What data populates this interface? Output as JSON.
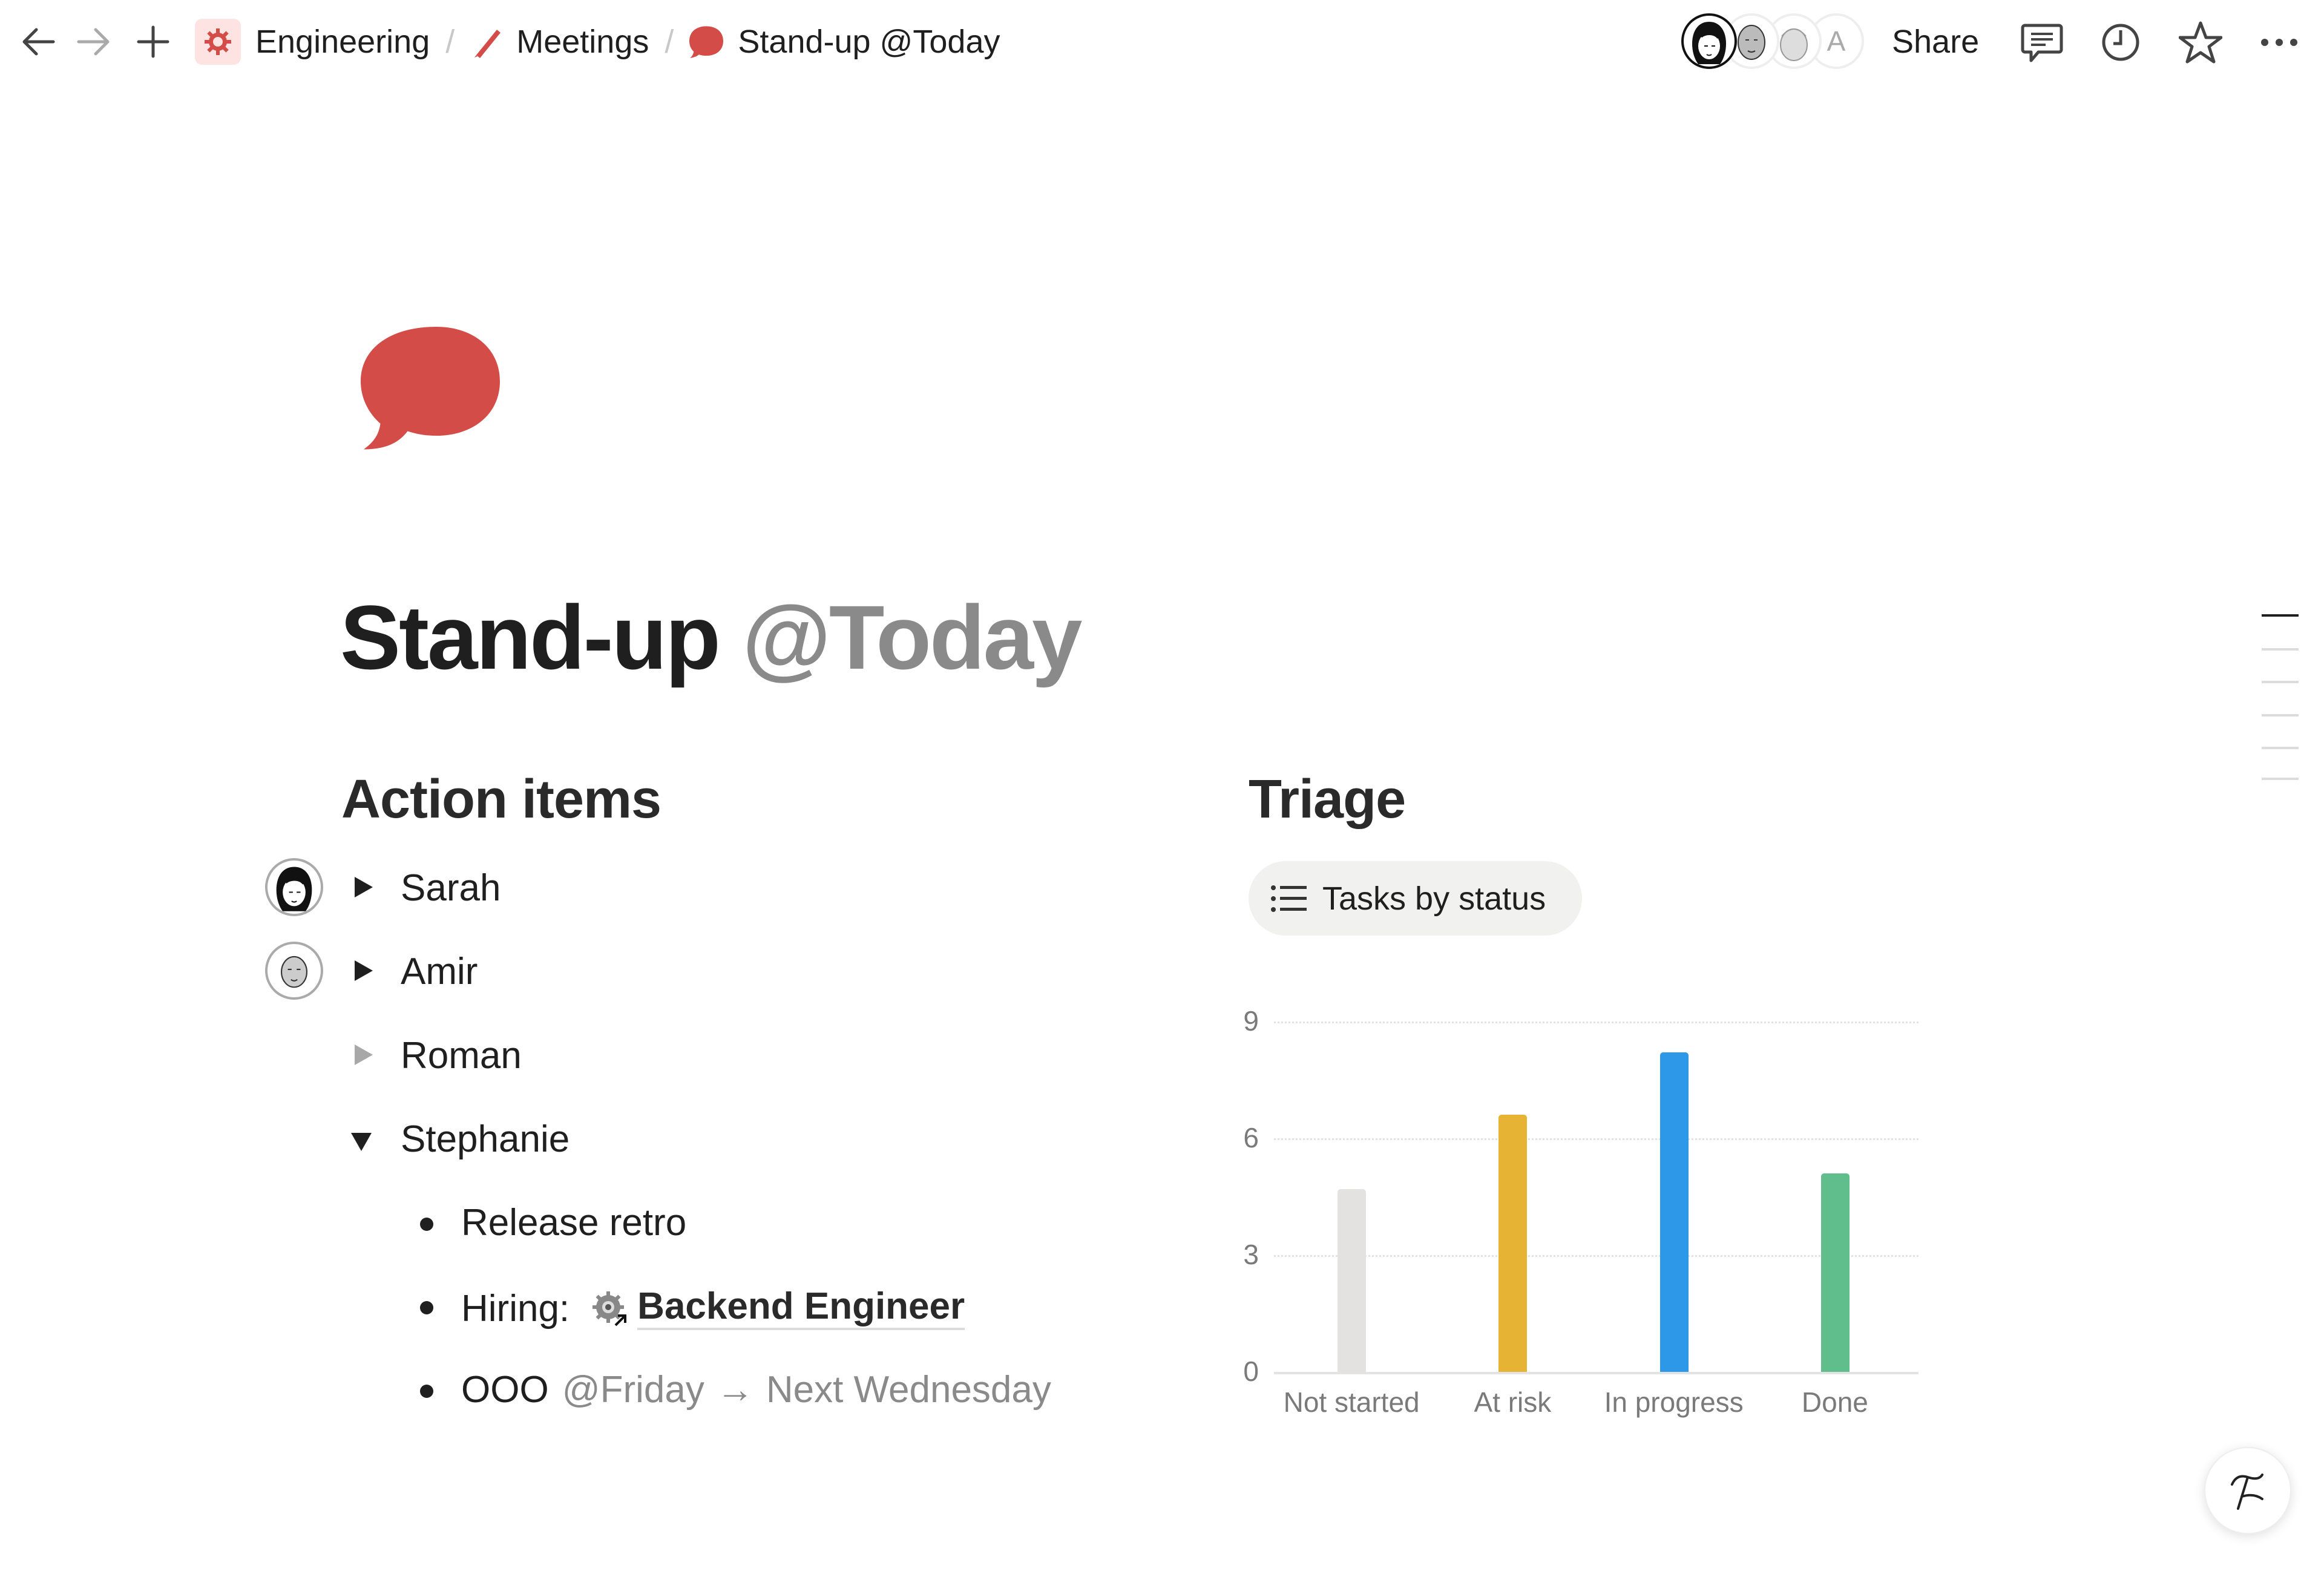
{
  "topbar": {
    "breadcrumb": [
      {
        "label": "Engineering",
        "icon": "gear-icon"
      },
      {
        "label": "Meetings",
        "icon": "pencil-icon"
      },
      {
        "label": "Stand-up @Today",
        "icon": "speech-bubble-icon"
      }
    ],
    "separator": "/",
    "avatars": [
      "Sarah",
      "Amir",
      "Roman",
      "A"
    ],
    "share_label": "Share"
  },
  "page": {
    "icon": "speech-bubble-icon",
    "title": "Stand-up",
    "title_mention": "@Today"
  },
  "action_items": {
    "heading": "Action items",
    "people": [
      {
        "name": "Sarah",
        "state": "collapsed",
        "has_avatar": true
      },
      {
        "name": "Amir",
        "state": "collapsed",
        "has_avatar": true
      },
      {
        "name": "Roman",
        "state": "collapsed-empty",
        "has_avatar": false
      },
      {
        "name": "Stephanie",
        "state": "expanded",
        "has_avatar": false
      }
    ],
    "stephanie_items": [
      {
        "text": "Release retro"
      },
      {
        "prefix": "Hiring:",
        "link": "Backend Engineer"
      },
      {
        "text": "OOO",
        "mention": "@Friday",
        "arrow": "→",
        "to": "Next Wednesday"
      }
    ]
  },
  "triage": {
    "heading": "Triage",
    "view_label": "Tasks by status",
    "view_icon": "list-icon"
  },
  "chart_data": {
    "type": "bar",
    "categories": [
      "Not started",
      "At risk",
      "In progress",
      "Done"
    ],
    "values": [
      4.7,
      6.6,
      8.2,
      5.1
    ],
    "colors": [
      "#e3e2e0",
      "#e6b334",
      "#2d98e8",
      "#60be8c"
    ],
    "yticks": [
      "0",
      "3",
      "6",
      "9"
    ],
    "ylim": [
      0,
      9
    ],
    "grid": true
  }
}
